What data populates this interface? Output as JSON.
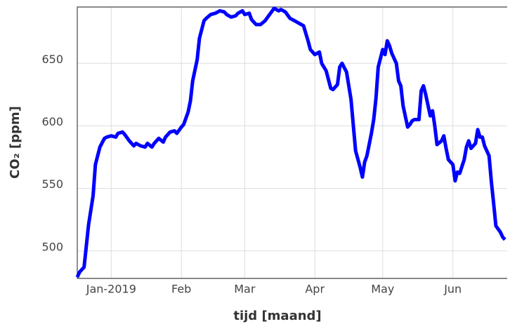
{
  "chart_data": {
    "type": "line",
    "x_label": "tijd [maand]",
    "y_label": "CO₂ [ppm]",
    "x": [
      -14,
      -13,
      -11,
      -9,
      -7,
      -6,
      -4,
      -2,
      -1,
      1,
      3,
      4,
      6,
      7,
      9,
      11,
      12,
      14,
      16,
      17,
      19,
      20,
      22,
      24,
      25,
      27,
      29,
      30,
      32,
      33,
      35,
      36,
      37,
      39,
      40,
      42,
      43,
      45,
      47,
      49,
      51,
      52,
      54,
      56,
      57,
      59,
      60,
      62,
      63,
      65,
      67,
      69,
      71,
      73,
      75,
      76,
      78,
      80,
      82,
      84,
      86,
      88,
      89,
      91,
      93,
      94,
      96,
      98,
      99,
      101,
      102,
      103,
      105,
      107,
      108,
      109,
      111,
      112,
      113,
      114,
      116,
      117,
      118,
      119,
      121,
      122,
      123,
      124,
      125,
      127,
      128,
      129,
      130,
      132,
      133,
      134,
      135,
      137,
      138,
      139,
      140,
      142,
      143,
      144,
      145,
      147,
      148,
      149,
      150,
      152,
      153,
      154,
      155,
      157,
      158,
      159,
      160,
      162,
      163,
      164,
      165,
      166,
      168,
      169,
      170,
      171,
      173,
      174,
      175
    ],
    "series": [
      {
        "color": "#0000ff",
        "values": [
          479,
          483,
          487,
          521,
          544,
          569,
          583,
          590,
          591,
          592,
          591,
          594,
          595,
          593,
          588,
          584,
          586,
          584,
          583,
          586,
          583,
          586,
          590,
          587,
          591,
          595,
          596,
          594,
          599,
          601,
          611,
          620,
          636,
          653,
          670,
          684,
          686,
          689,
          690,
          692,
          691,
          689,
          687,
          688,
          690,
          692,
          689,
          690,
          685,
          681,
          681,
          684,
          689,
          694,
          692,
          693,
          691,
          686,
          684,
          682,
          680,
          668,
          661,
          657,
          659,
          650,
          644,
          630,
          629,
          633,
          647,
          650,
          643,
          621,
          600,
          580,
          567,
          559,
          571,
          576,
          594,
          605,
          622,
          647,
          661,
          657,
          668,
          664,
          658,
          650,
          636,
          632,
          616,
          599,
          601,
          604,
          605,
          605,
          628,
          632,
          625,
          608,
          612,
          600,
          585,
          588,
          592,
          582,
          573,
          569,
          556,
          563,
          562,
          573,
          583,
          588,
          582,
          586,
          597,
          591,
          591,
          584,
          576,
          555,
          538,
          520,
          515,
          511,
          509
        ]
      }
    ],
    "xlim": [
      -14,
      176
    ],
    "xticks": [
      {
        "value": 1,
        "label": "Jan-2019"
      },
      {
        "value": 32,
        "label": "Feb"
      },
      {
        "value": 60,
        "label": "Mar"
      },
      {
        "value": 91,
        "label": "Apr"
      },
      {
        "value": 121,
        "label": "May"
      },
      {
        "value": 152,
        "label": "Jun"
      }
    ],
    "ylim": [
      478,
      695
    ],
    "yticks": [
      500,
      550,
      600,
      650
    ],
    "grid": true
  }
}
